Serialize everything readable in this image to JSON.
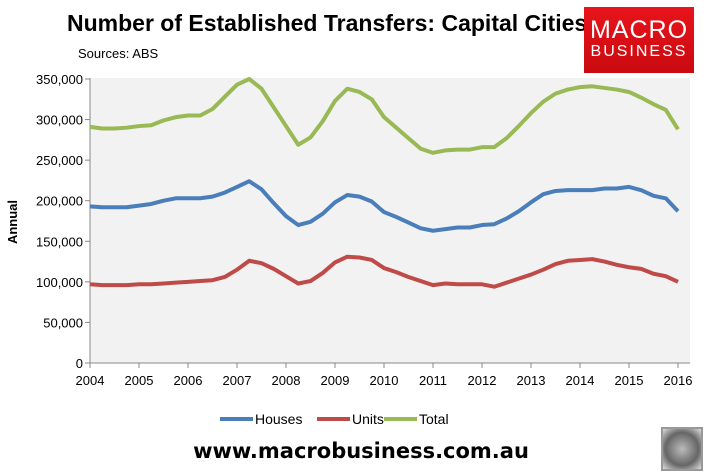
{
  "chart_data": {
    "type": "line",
    "title": "Number of Established Transfers: Capital Cities",
    "subtitle": "Sources: ABS",
    "ylabel": "Annual",
    "xlabel": "",
    "ylim": [
      0,
      350000
    ],
    "xlim": [
      2004,
      2016
    ],
    "yticks": [
      "0",
      "50,000",
      "100,000",
      "150,000",
      "200,000",
      "250,000",
      "300,000",
      "350,000"
    ],
    "xticks": [
      "2004",
      "2005",
      "2006",
      "2007",
      "2008",
      "2009",
      "2010",
      "2011",
      "2012",
      "2013",
      "2014",
      "2015",
      "2016"
    ],
    "x_step": "quarterly from 2004 to 2016",
    "legend": "bottom",
    "grid": false,
    "series": [
      {
        "name": "Houses",
        "color": "#4a7ebb",
        "values": [
          193000,
          192000,
          192000,
          192000,
          194000,
          196000,
          200000,
          203000,
          203000,
          203000,
          205000,
          210000,
          217000,
          224000,
          214000,
          197000,
          181000,
          170000,
          174000,
          184000,
          198000,
          207000,
          205000,
          199000,
          186000,
          180000,
          173000,
          166000,
          163000,
          165000,
          167000,
          167000,
          170000,
          171000,
          178000,
          187000,
          198000,
          208000,
          212000,
          213000,
          213000,
          213000,
          215000,
          215000,
          217000,
          213000,
          206000,
          203000,
          187000
        ]
      },
      {
        "name": "Units",
        "color": "#be4b48",
        "values": [
          97000,
          96000,
          96000,
          96000,
          97000,
          97000,
          98000,
          99000,
          100000,
          101000,
          102000,
          106000,
          115000,
          126000,
          123000,
          116000,
          107000,
          98000,
          101000,
          111000,
          124000,
          131000,
          130000,
          127000,
          117000,
          112000,
          106000,
          101000,
          96000,
          98000,
          97000,
          97000,
          97000,
          94000,
          99000,
          104000,
          109000,
          115000,
          122000,
          126000,
          127000,
          128000,
          125000,
          121000,
          118000,
          116000,
          110000,
          107000,
          100000
        ]
      },
      {
        "name": "Total",
        "color": "#98b954",
        "values": [
          291000,
          289000,
          289000,
          290000,
          292000,
          293000,
          299000,
          303000,
          305000,
          305000,
          313000,
          328000,
          343000,
          350000,
          338000,
          315000,
          292000,
          269000,
          278000,
          298000,
          323000,
          338000,
          334000,
          325000,
          303000,
          290000,
          277000,
          264000,
          259000,
          262000,
          263000,
          263000,
          266000,
          266000,
          277000,
          292000,
          308000,
          322000,
          332000,
          337000,
          340000,
          341000,
          339000,
          337000,
          334000,
          327000,
          319000,
          312000,
          288000
        ]
      }
    ]
  },
  "logo": {
    "line1": "MACRO",
    "line2": "BUSINESS"
  },
  "footer": {
    "url": "www.macrobusiness.com.au"
  }
}
